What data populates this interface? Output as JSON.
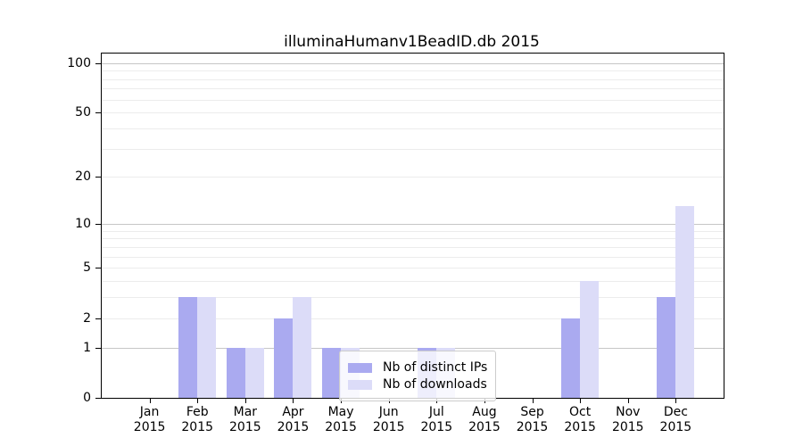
{
  "chart_data": {
    "type": "bar",
    "title": "illuminaHumanv1BeadID.db 2015",
    "categories": [
      "Jan",
      "Feb",
      "Mar",
      "Apr",
      "May",
      "Jun",
      "Jul",
      "Aug",
      "Sep",
      "Oct",
      "Nov",
      "Dec"
    ],
    "year": "2015",
    "series": [
      {
        "name": "Nb of distinct IPs",
        "color": "#aaaaf0",
        "values": [
          0,
          3,
          1,
          2,
          1,
          0,
          1,
          0,
          0,
          2,
          0,
          3
        ]
      },
      {
        "name": "Nb of downloads",
        "color": "#dcdcf8",
        "values": [
          0,
          3,
          1,
          3,
          1,
          0,
          1,
          0,
          0,
          4,
          0,
          13
        ]
      }
    ],
    "yscale": "log10(1+v)",
    "ylim": [
      0,
      114
    ],
    "yticks": [
      100,
      50,
      20,
      10,
      5,
      2,
      1,
      0
    ],
    "grid": {
      "major": [
        1,
        10,
        100
      ],
      "minor": [
        2,
        3,
        4,
        5,
        6,
        7,
        8,
        9,
        20,
        30,
        40,
        50,
        60,
        70,
        80,
        90
      ]
    },
    "legend_position": "lower center",
    "grid_on": true
  },
  "colors": {
    "axis": "#000000",
    "grid_major": "#c6c6c6",
    "grid_minor": "#ececec",
    "background": "#ffffff"
  }
}
